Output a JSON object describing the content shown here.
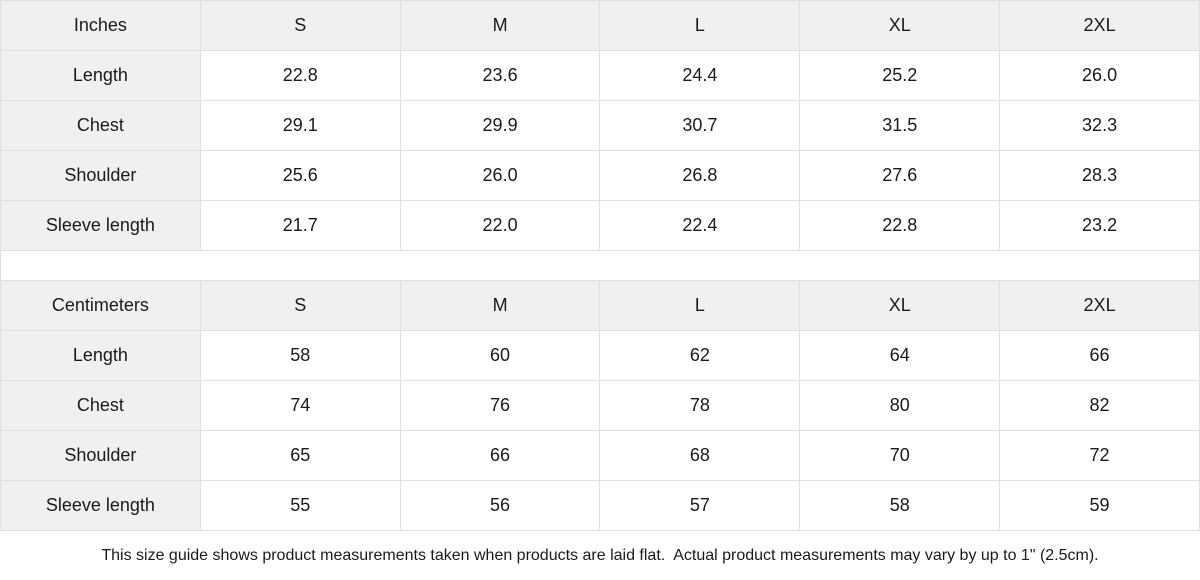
{
  "tables": [
    {
      "unit_label": "Inches",
      "sizes": [
        "S",
        "M",
        "L",
        "XL",
        "2XL"
      ],
      "rows": [
        {
          "label": "Length",
          "values": [
            "22.8",
            "23.6",
            "24.4",
            "25.2",
            "26.0"
          ]
        },
        {
          "label": "Chest",
          "values": [
            "29.1",
            "29.9",
            "30.7",
            "31.5",
            "32.3"
          ]
        },
        {
          "label": "Shoulder",
          "values": [
            "25.6",
            "26.0",
            "26.8",
            "27.6",
            "28.3"
          ]
        },
        {
          "label": "Sleeve length",
          "values": [
            "21.7",
            "22.0",
            "22.4",
            "22.8",
            "23.2"
          ]
        }
      ]
    },
    {
      "unit_label": "Centimeters",
      "sizes": [
        "S",
        "M",
        "L",
        "XL",
        "2XL"
      ],
      "rows": [
        {
          "label": "Length",
          "values": [
            "58",
            "60",
            "62",
            "64",
            "66"
          ]
        },
        {
          "label": "Chest",
          "values": [
            "74",
            "76",
            "78",
            "80",
            "82"
          ]
        },
        {
          "label": "Shoulder",
          "values": [
            "65",
            "66",
            "68",
            "70",
            "72"
          ]
        },
        {
          "label": "Sleeve length",
          "values": [
            "55",
            "56",
            "57",
            "58",
            "59"
          ]
        }
      ]
    }
  ],
  "footer": {
    "note": "This size guide shows product measurements taken when products are laid flat.  Actual product measurements may vary by up to 1\" (2.5cm)."
  },
  "colors": {
    "header_bg": "#f0f0f0",
    "border": "#e0e0e0",
    "text": "#1a1a1a"
  }
}
